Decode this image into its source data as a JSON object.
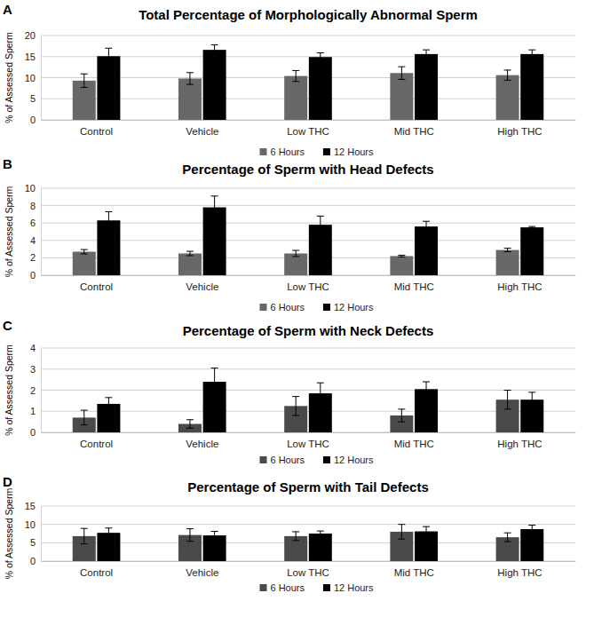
{
  "chart_data": [
    {
      "type": "bar",
      "title": "Total Percentage of Morphologically Abnormal Sperm",
      "annotations": [
        "A"
      ],
      "y_label": "% of Assessed Sperm",
      "categories": [
        "Control",
        "Vehicle",
        "Low THC",
        "Mid THC",
        "High THC"
      ],
      "series": [
        {
          "name": "6 Hours",
          "color": "#686868",
          "values": [
            9.3,
            9.8,
            10.4,
            11.1,
            10.6
          ],
          "errors": [
            1.6,
            1.4,
            1.3,
            1.5,
            1.2
          ]
        },
        {
          "name": "12 Hours",
          "color": "#000000",
          "values": [
            15.1,
            16.6,
            14.9,
            15.6,
            15.6
          ],
          "errors": [
            1.9,
            1.2,
            1.0,
            1.0,
            1.0
          ]
        }
      ],
      "ylim": [
        0,
        20
      ],
      "yticks": [
        0,
        5,
        10,
        15,
        20
      ],
      "grid": true,
      "legend": "bottom"
    },
    {
      "type": "bar",
      "title": "Percentage of Sperm with Head Defects",
      "annotations": [
        "B"
      ],
      "y_label": "% of Assessed Sperm",
      "categories": [
        "Control",
        "Vehicle",
        "Low THC",
        "Mid THC",
        "High THC"
      ],
      "series": [
        {
          "name": "6 Hours",
          "color": "#686868",
          "values": [
            2.7,
            2.5,
            2.5,
            2.2,
            2.9
          ],
          "errors": [
            0.25,
            0.25,
            0.35,
            0.1,
            0.2
          ]
        },
        {
          "name": "12 Hours",
          "color": "#000000",
          "values": [
            6.3,
            7.8,
            5.8,
            5.6,
            5.5
          ],
          "errors": [
            1.0,
            1.3,
            1.0,
            0.6,
            0.1
          ]
        }
      ],
      "ylim": [
        0,
        10
      ],
      "yticks": [
        0,
        2,
        4,
        6,
        8,
        10
      ],
      "grid": true,
      "legend": "bottom"
    },
    {
      "type": "bar",
      "title": "Percentage of Sperm with Neck Defects",
      "annotations": [
        "C"
      ],
      "y_label": "% of Assessed Sperm",
      "categories": [
        "Control",
        "Vehicle",
        "Low THC",
        "Mid THC",
        "High THC"
      ],
      "series": [
        {
          "name": "6 Hours",
          "color": "#4a4a4a",
          "values": [
            0.7,
            0.4,
            1.25,
            0.8,
            1.55
          ],
          "errors": [
            0.35,
            0.2,
            0.45,
            0.3,
            0.45
          ]
        },
        {
          "name": "12 Hours",
          "color": "#000000",
          "values": [
            1.35,
            2.4,
            1.85,
            2.05,
            1.55
          ],
          "errors": [
            0.3,
            0.65,
            0.5,
            0.35,
            0.35
          ]
        }
      ],
      "ylim": [
        0,
        4
      ],
      "yticks": [
        0,
        1,
        2,
        3,
        4
      ],
      "grid": true,
      "legend": "bottom"
    },
    {
      "type": "bar",
      "title": "Percentage of Sperm with Tail Defects",
      "annotations": [
        "D"
      ],
      "y_label": "% of Assessed Sperm",
      "categories": [
        "Control",
        "Vehicle",
        "Low THC",
        "Mid THC",
        "High THC"
      ],
      "series": [
        {
          "name": "6 Hours",
          "color": "#4a4a4a",
          "values": [
            6.8,
            7.1,
            6.8,
            8.0,
            6.5
          ],
          "errors": [
            2.1,
            1.7,
            1.2,
            2.0,
            1.2
          ]
        },
        {
          "name": "12 Hours",
          "color": "#000000",
          "values": [
            7.7,
            7.0,
            7.5,
            8.1,
            8.7
          ],
          "errors": [
            1.3,
            1.1,
            0.7,
            1.3,
            1.1
          ]
        }
      ],
      "ylim": [
        0,
        15
      ],
      "yticks": [
        0,
        5,
        10,
        15
      ],
      "grid": true,
      "legend": "bottom"
    }
  ]
}
